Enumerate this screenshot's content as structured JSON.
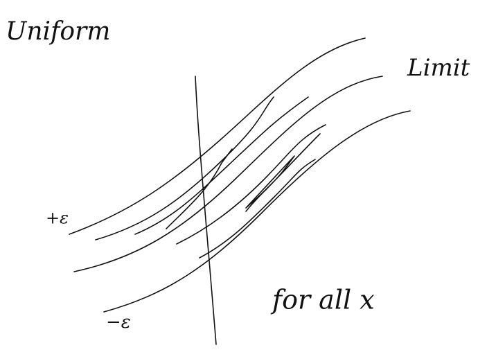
{
  "title": "Uniform",
  "curve_label": "Limit",
  "upper_band_label": "+ε",
  "lower_band_label": "−ε",
  "caption": "for all x"
}
